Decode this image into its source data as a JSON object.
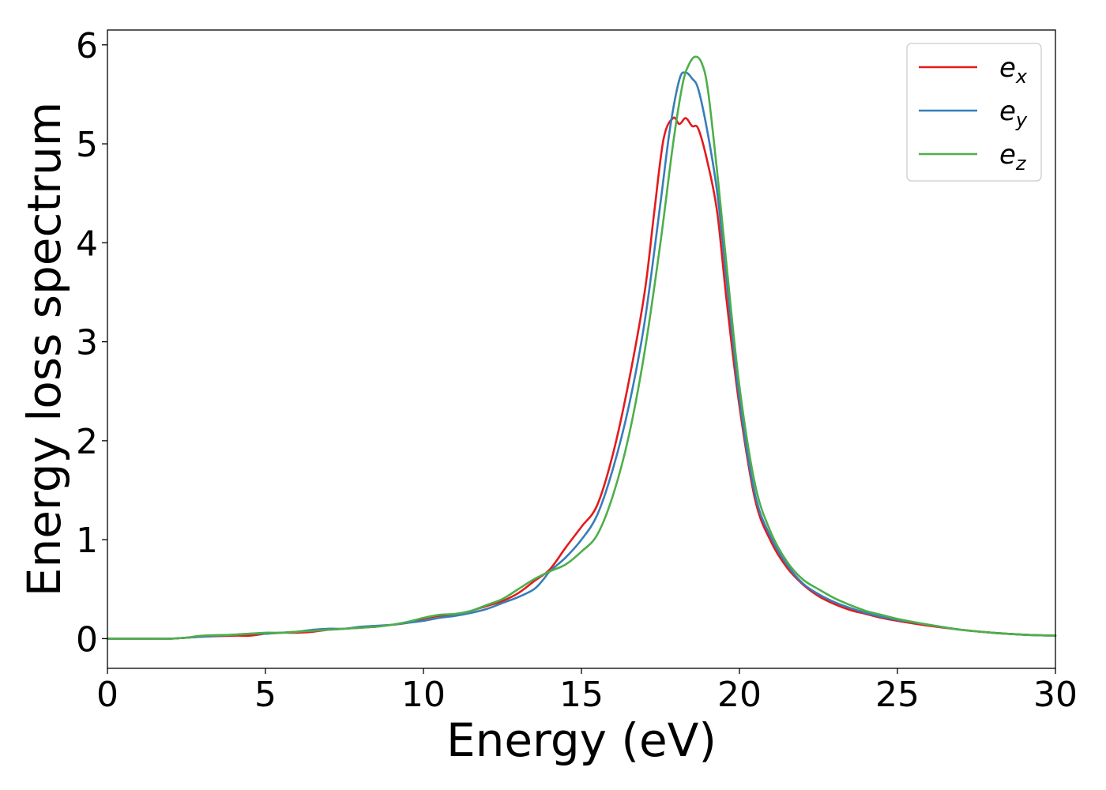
{
  "chart_data": {
    "type": "line",
    "title": "",
    "xlabel": "Energy (eV)",
    "ylabel": "Energy loss spectrum",
    "xlim": [
      0,
      30
    ],
    "ylim": [
      -0.3,
      6.15
    ],
    "xticks": [
      0,
      5,
      10,
      15,
      20,
      25,
      30
    ],
    "yticks": [
      0,
      1,
      2,
      3,
      4,
      5,
      6
    ],
    "grid": false,
    "legend_position": "top-right",
    "series": [
      {
        "name": "e_x",
        "label_base": "e",
        "label_sub": "x",
        "color": "#e41a1c",
        "points": [
          [
            0,
            0
          ],
          [
            1,
            0
          ],
          [
            2,
            0
          ],
          [
            2.5,
            0.01
          ],
          [
            3,
            0.02
          ],
          [
            4,
            0.03
          ],
          [
            4.5,
            0.03
          ],
          [
            5,
            0.05
          ],
          [
            5.5,
            0.06
          ],
          [
            6,
            0.06
          ],
          [
            6.5,
            0.07
          ],
          [
            7,
            0.09
          ],
          [
            7.5,
            0.1
          ],
          [
            8,
            0.11
          ],
          [
            8.5,
            0.12
          ],
          [
            9,
            0.14
          ],
          [
            9.5,
            0.16
          ],
          [
            10,
            0.2
          ],
          [
            10.5,
            0.23
          ],
          [
            11,
            0.24
          ],
          [
            11.5,
            0.28
          ],
          [
            12,
            0.33
          ],
          [
            12.5,
            0.38
          ],
          [
            13,
            0.46
          ],
          [
            13.5,
            0.58
          ],
          [
            14,
            0.7
          ],
          [
            14.5,
            0.92
          ],
          [
            15,
            1.13
          ],
          [
            15.5,
            1.35
          ],
          [
            16,
            1.87
          ],
          [
            16.5,
            2.6
          ],
          [
            17,
            3.5
          ],
          [
            17.3,
            4.3
          ],
          [
            17.6,
            5.05
          ],
          [
            17.9,
            5.26
          ],
          [
            18.1,
            5.2
          ],
          [
            18.3,
            5.26
          ],
          [
            18.5,
            5.18
          ],
          [
            18.7,
            5.15
          ],
          [
            19,
            4.8
          ],
          [
            19.3,
            4.3
          ],
          [
            19.6,
            3.4
          ],
          [
            20,
            2.35
          ],
          [
            20.5,
            1.4
          ],
          [
            21,
            0.98
          ],
          [
            21.5,
            0.72
          ],
          [
            22,
            0.55
          ],
          [
            22.5,
            0.43
          ],
          [
            23,
            0.35
          ],
          [
            23.5,
            0.29
          ],
          [
            24,
            0.25
          ],
          [
            24.5,
            0.21
          ],
          [
            25,
            0.18
          ],
          [
            26,
            0.13
          ],
          [
            27,
            0.09
          ],
          [
            28,
            0.06
          ],
          [
            29,
            0.04
          ],
          [
            30,
            0.03
          ]
        ]
      },
      {
        "name": "e_y",
        "label_base": "e",
        "label_sub": "y",
        "color": "#377eb8",
        "points": [
          [
            0,
            0
          ],
          [
            1,
            0
          ],
          [
            2,
            0
          ],
          [
            2.5,
            0.01
          ],
          [
            3,
            0.02
          ],
          [
            4,
            0.04
          ],
          [
            4.5,
            0.05
          ],
          [
            5,
            0.05
          ],
          [
            5.5,
            0.06
          ],
          [
            6,
            0.07
          ],
          [
            6.5,
            0.09
          ],
          [
            7,
            0.1
          ],
          [
            7.5,
            0.1
          ],
          [
            8,
            0.12
          ],
          [
            8.5,
            0.13
          ],
          [
            9,
            0.14
          ],
          [
            9.5,
            0.16
          ],
          [
            10,
            0.18
          ],
          [
            10.5,
            0.21
          ],
          [
            11,
            0.23
          ],
          [
            11.5,
            0.26
          ],
          [
            12,
            0.3
          ],
          [
            12.5,
            0.36
          ],
          [
            13,
            0.42
          ],
          [
            13.5,
            0.5
          ],
          [
            13.8,
            0.6
          ],
          [
            14,
            0.68
          ],
          [
            14.5,
            0.82
          ],
          [
            15,
            1.0
          ],
          [
            15.5,
            1.25
          ],
          [
            16,
            1.72
          ],
          [
            16.5,
            2.35
          ],
          [
            17,
            3.2
          ],
          [
            17.5,
            4.4
          ],
          [
            17.8,
            5.15
          ],
          [
            18.1,
            5.65
          ],
          [
            18.3,
            5.72
          ],
          [
            18.5,
            5.66
          ],
          [
            18.7,
            5.55
          ],
          [
            19,
            5.1
          ],
          [
            19.3,
            4.5
          ],
          [
            19.6,
            3.6
          ],
          [
            20,
            2.42
          ],
          [
            20.5,
            1.45
          ],
          [
            21,
            1.02
          ],
          [
            21.5,
            0.75
          ],
          [
            22,
            0.56
          ],
          [
            22.5,
            0.45
          ],
          [
            23,
            0.37
          ],
          [
            23.5,
            0.31
          ],
          [
            24,
            0.26
          ],
          [
            24.5,
            0.22
          ],
          [
            25,
            0.19
          ],
          [
            26,
            0.14
          ],
          [
            27,
            0.09
          ],
          [
            28,
            0.06
          ],
          [
            29,
            0.04
          ],
          [
            30,
            0.03
          ]
        ]
      },
      {
        "name": "e_z",
        "label_base": "e",
        "label_sub": "z",
        "color": "#4daf4a",
        "points": [
          [
            0,
            0
          ],
          [
            1,
            0
          ],
          [
            2,
            0
          ],
          [
            2.5,
            0.01
          ],
          [
            3,
            0.03
          ],
          [
            4,
            0.04
          ],
          [
            4.5,
            0.05
          ],
          [
            5,
            0.06
          ],
          [
            5.5,
            0.06
          ],
          [
            6,
            0.07
          ],
          [
            6.5,
            0.08
          ],
          [
            7,
            0.09
          ],
          [
            7.5,
            0.1
          ],
          [
            8,
            0.11
          ],
          [
            8.5,
            0.12
          ],
          [
            9,
            0.14
          ],
          [
            9.5,
            0.17
          ],
          [
            10,
            0.21
          ],
          [
            10.5,
            0.24
          ],
          [
            11,
            0.25
          ],
          [
            11.5,
            0.28
          ],
          [
            12,
            0.34
          ],
          [
            12.5,
            0.4
          ],
          [
            13,
            0.5
          ],
          [
            13.5,
            0.6
          ],
          [
            14,
            0.68
          ],
          [
            14.5,
            0.75
          ],
          [
            15,
            0.88
          ],
          [
            15.5,
            1.05
          ],
          [
            16,
            1.45
          ],
          [
            16.5,
            2.05
          ],
          [
            17,
            2.9
          ],
          [
            17.5,
            4.0
          ],
          [
            17.9,
            5.0
          ],
          [
            18.2,
            5.6
          ],
          [
            18.4,
            5.8
          ],
          [
            18.6,
            5.88
          ],
          [
            18.8,
            5.82
          ],
          [
            19,
            5.55
          ],
          [
            19.3,
            4.7
          ],
          [
            19.6,
            3.75
          ],
          [
            20,
            2.55
          ],
          [
            20.5,
            1.55
          ],
          [
            21,
            1.07
          ],
          [
            21.5,
            0.78
          ],
          [
            22,
            0.6
          ],
          [
            22.5,
            0.5
          ],
          [
            23,
            0.41
          ],
          [
            23.5,
            0.34
          ],
          [
            24,
            0.28
          ],
          [
            24.5,
            0.24
          ],
          [
            25,
            0.2
          ],
          [
            26,
            0.14
          ],
          [
            27,
            0.09
          ],
          [
            28,
            0.06
          ],
          [
            29,
            0.04
          ],
          [
            30,
            0.03
          ]
        ]
      }
    ]
  }
}
